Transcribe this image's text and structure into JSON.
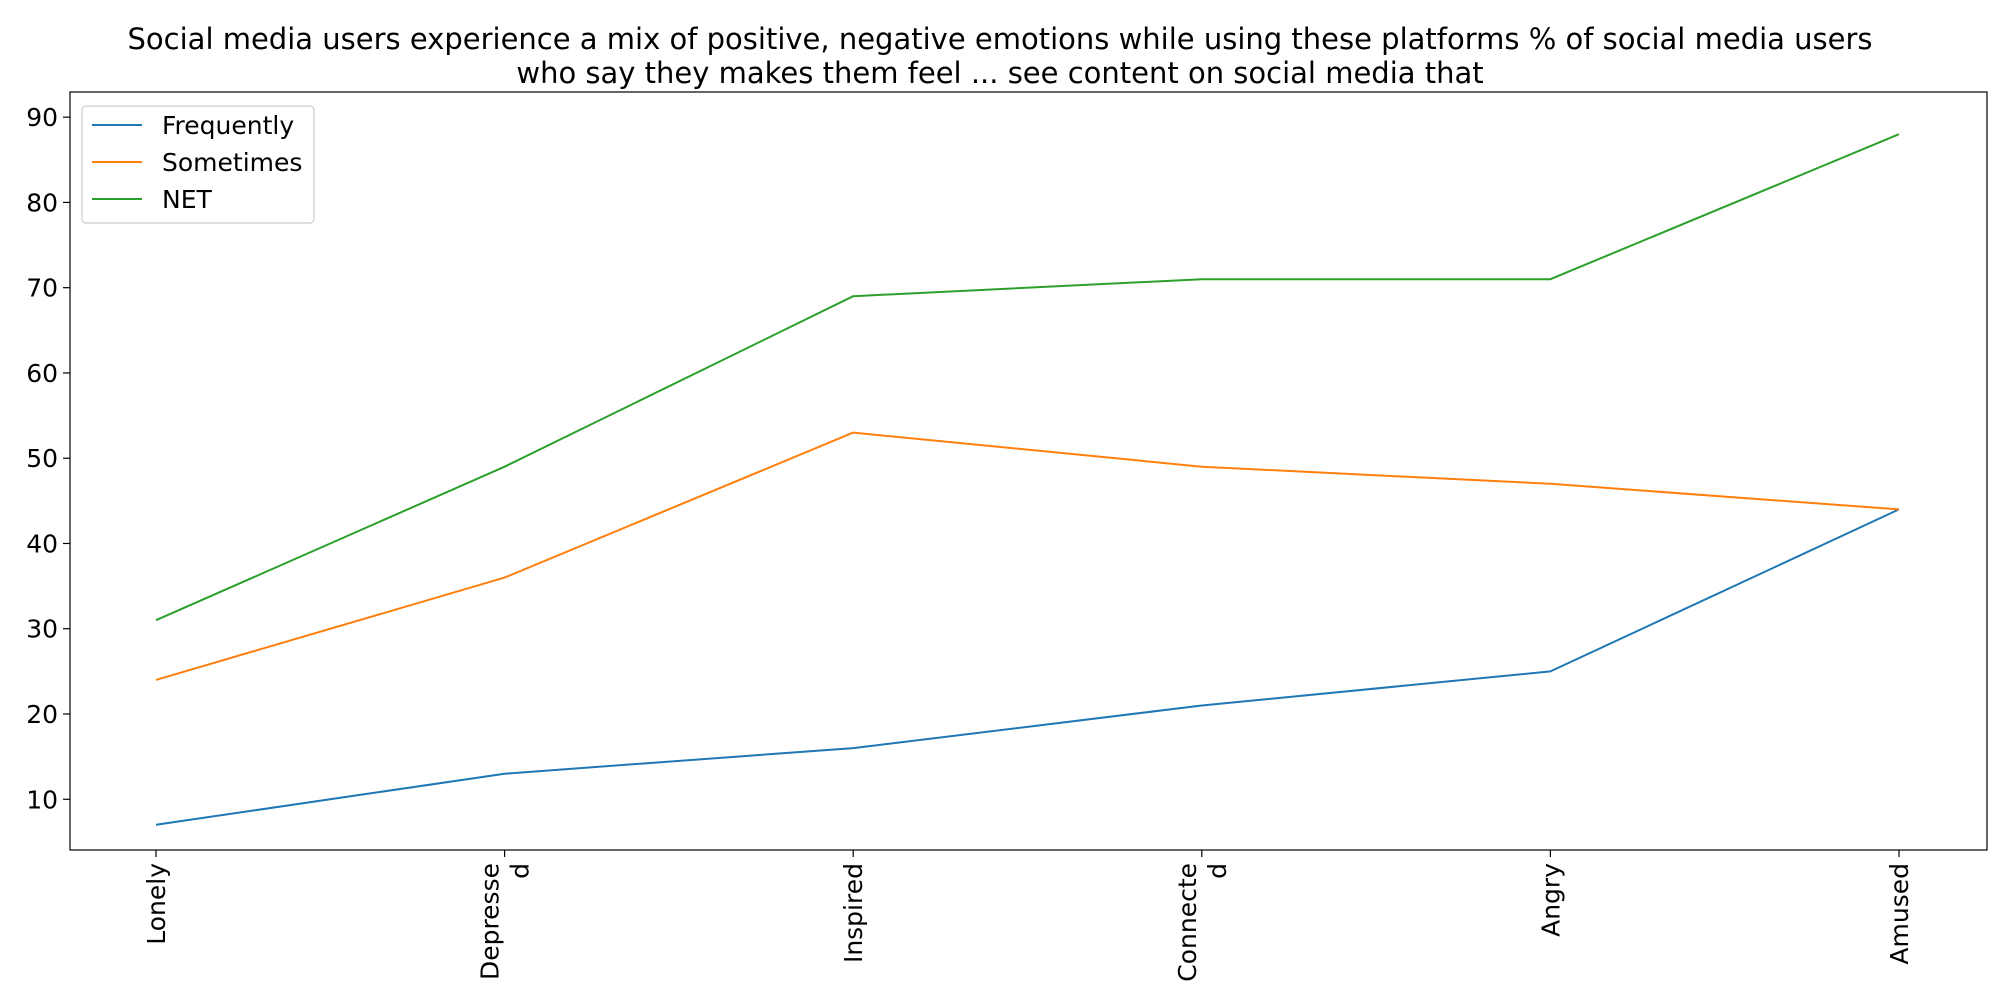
{
  "chart_data": {
    "type": "line",
    "title": "Social media users experience a mix of positive, negative emotions while using these platforms % of social media users who say they makes them feel ... see content on social media that",
    "title_lines": [
      "Social media users experience a mix of positive, negative emotions while using these platforms % of social media users",
      "who say they makes them feel ... see content on social media that"
    ],
    "xlabel": "",
    "ylabel": "",
    "categories": [
      "Lonely",
      "Depressed",
      "Inspired",
      "Connected",
      "Angry",
      "Amused"
    ],
    "category_tick_lines": [
      [
        "Lonely"
      ],
      [
        "Depresse",
        "d"
      ],
      [
        "Inspired"
      ],
      [
        "Connecte",
        "d"
      ],
      [
        "Angry"
      ],
      [
        "Amused"
      ]
    ],
    "y_ticks": [
      10,
      20,
      30,
      40,
      50,
      60,
      70,
      80,
      90
    ],
    "ylim": [
      4.05,
      92.95
    ],
    "grid": false,
    "legend_position": "top-left",
    "series": [
      {
        "name": "Frequently",
        "color": "#1f77b4",
        "values": [
          7,
          13,
          16,
          21,
          25,
          44
        ]
      },
      {
        "name": "Sometimes",
        "color": "#ff7f0e",
        "values": [
          24,
          36,
          53,
          49,
          47,
          44
        ]
      },
      {
        "name": "NET",
        "color": "#2ca02c",
        "values": [
          31,
          49,
          69,
          71,
          71,
          88
        ]
      }
    ]
  }
}
